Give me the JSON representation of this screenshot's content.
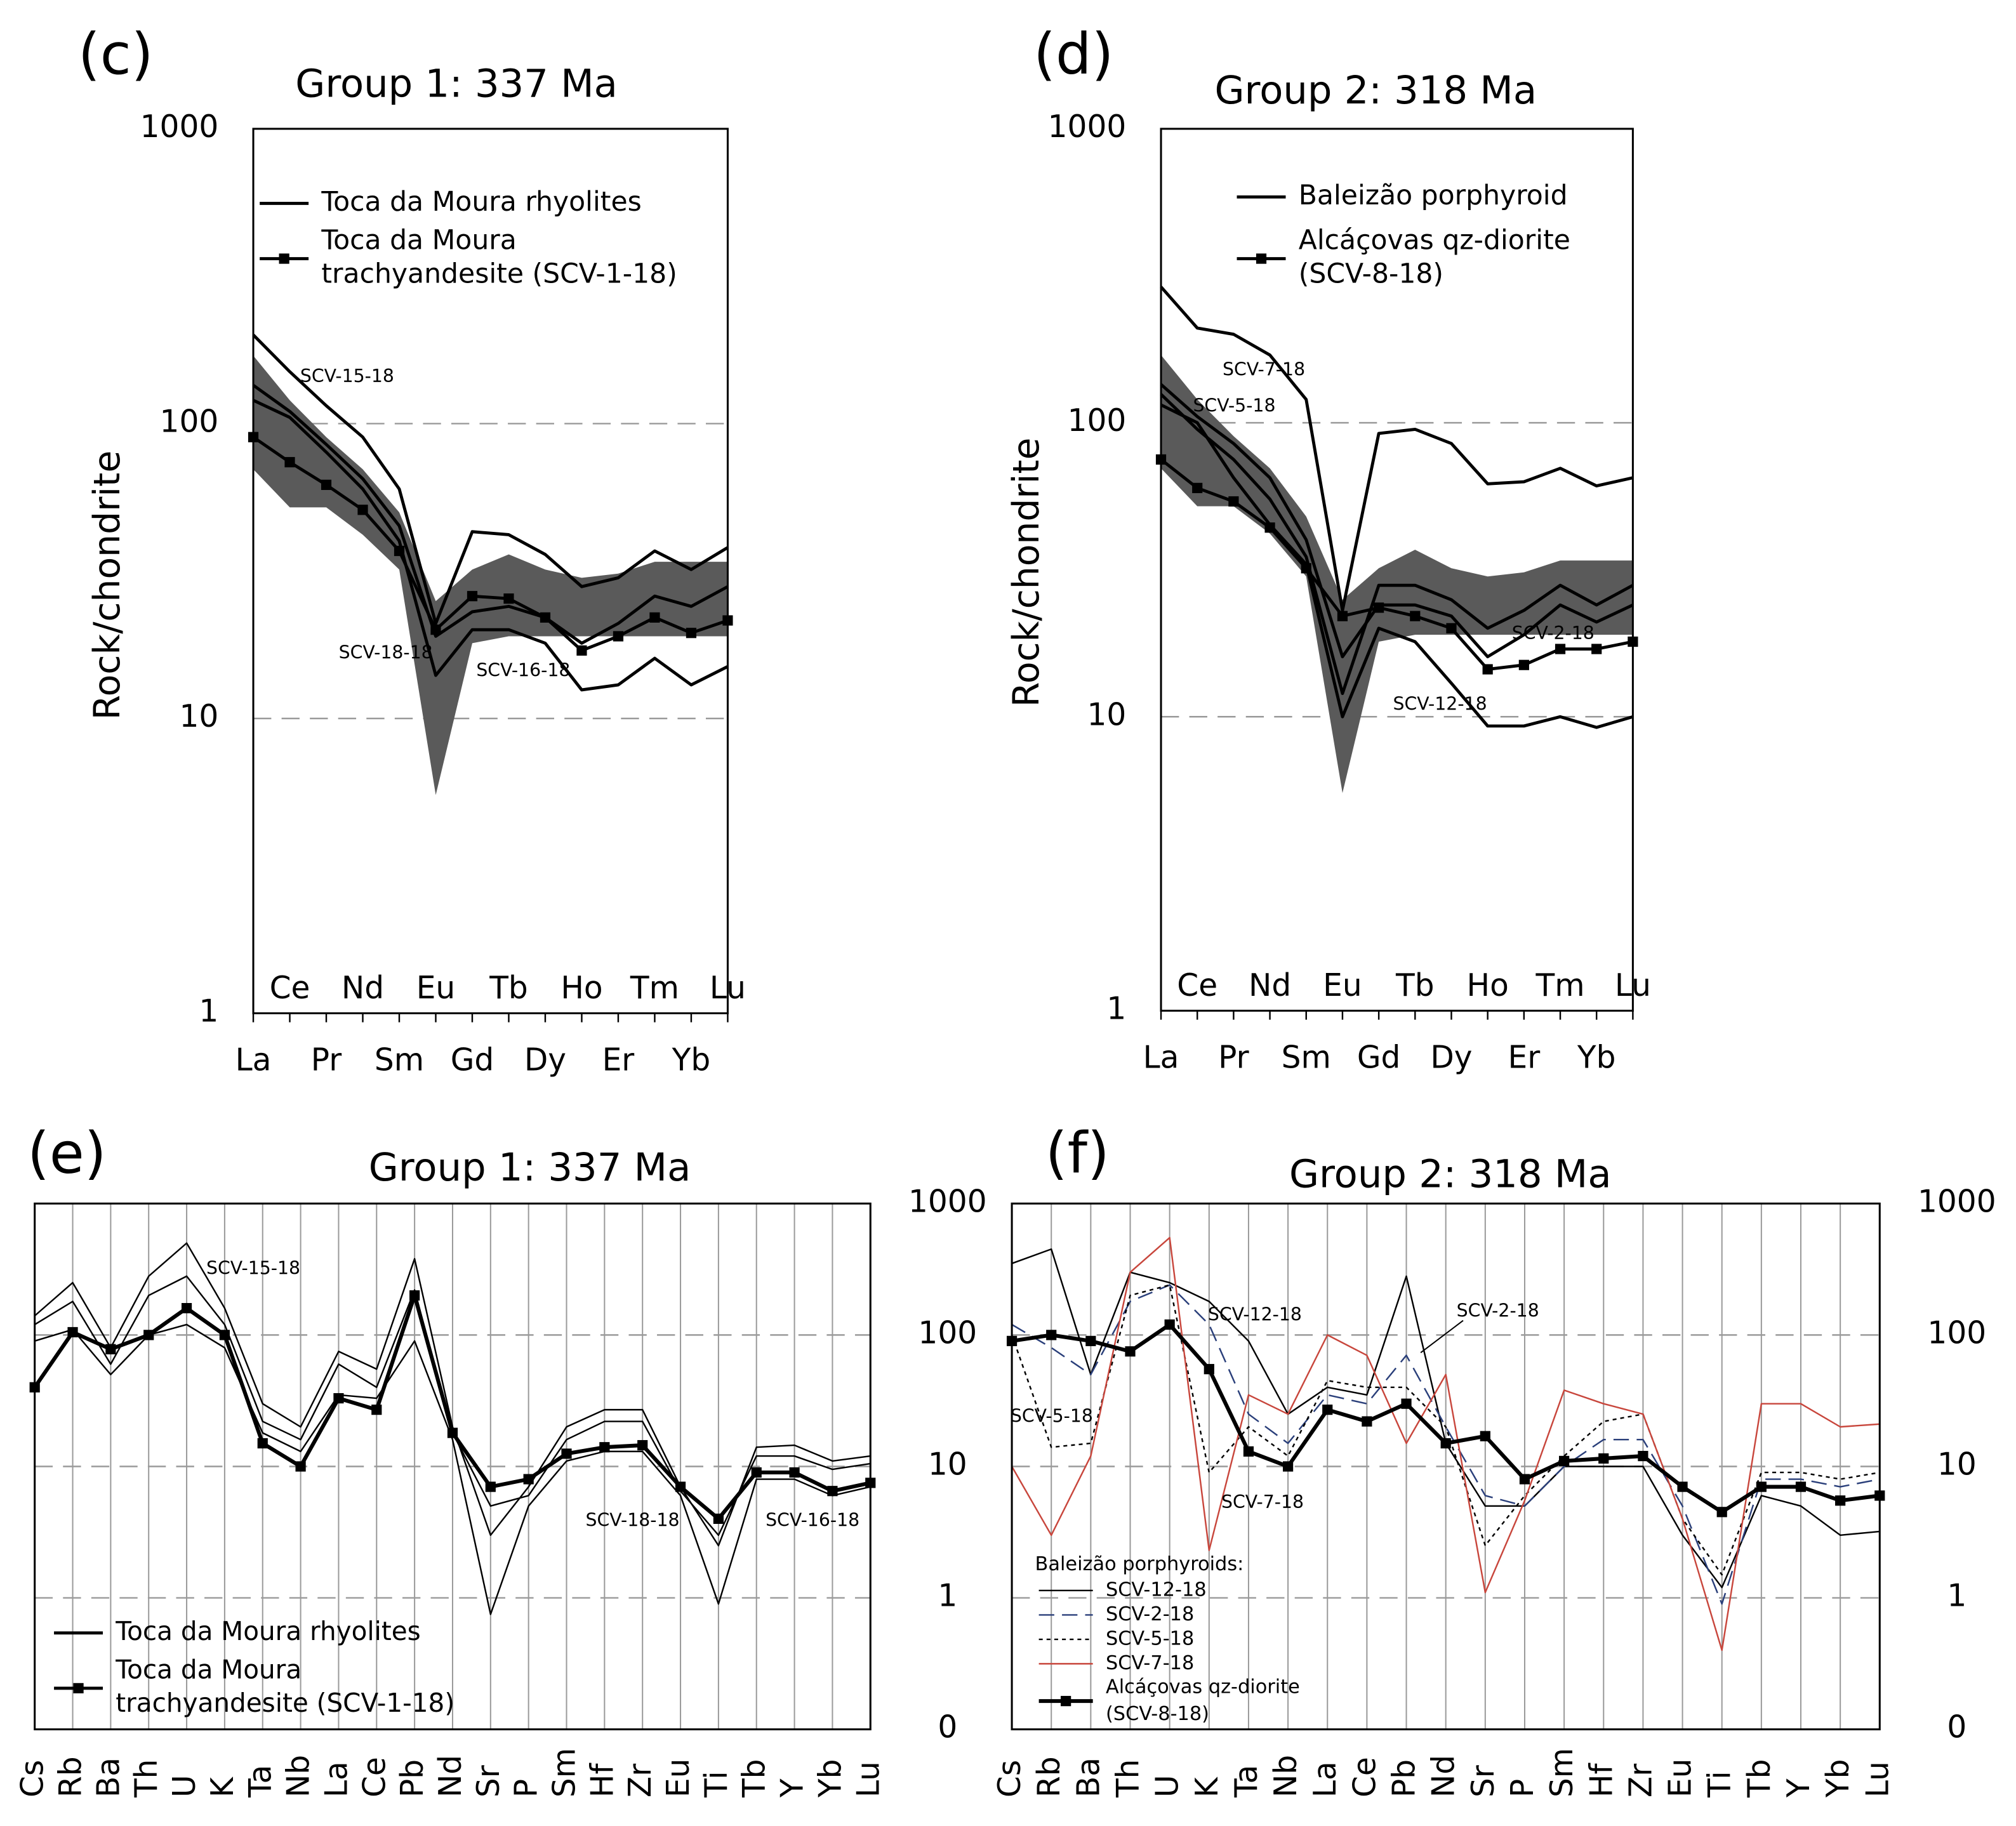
{
  "chart_data": [
    {
      "type": "line",
      "panel_label": "(c)",
      "title": "Group 1: 337 Ma",
      "ylabel": "Rock/chondrite",
      "log_y": true,
      "yaxis": "left",
      "grid": true,
      "categories": [
        "La",
        "Ce",
        "Pr",
        "Nd",
        "Sm",
        "Eu",
        "Gd",
        "Tb",
        "Dy",
        "Ho",
        "Er",
        "Tm",
        "Yb",
        "Lu"
      ],
      "ylim": [
        1,
        1000
      ],
      "yticks": [
        1,
        10,
        100,
        1000
      ],
      "band": {
        "color": "#5a5a5a",
        "upper": [
          170,
          120,
          90,
          70,
          50,
          25,
          32,
          36,
          32,
          30,
          31,
          34,
          34,
          34
        ],
        "lower": [
          70,
          52,
          52,
          42,
          32,
          5.5,
          18,
          19,
          19,
          19,
          19,
          19,
          19,
          19
        ]
      },
      "series": [
        {
          "name": "SCV-15-18",
          "color": "#000000",
          "width": "medium",
          "dash": "solid",
          "values": [
            200,
            150,
            115,
            90,
            60,
            21,
            43,
            42,
            36,
            28,
            30,
            37,
            32,
            38
          ]
        },
        {
          "name": "SCV-18-18",
          "color": "#000000",
          "width": "medium",
          "dash": "solid",
          "values": [
            135,
            110,
            85,
            65,
            45,
            19,
            23,
            24,
            22,
            18,
            21,
            26,
            24,
            28
          ]
        },
        {
          "name": "SCV-16-18",
          "color": "#000000",
          "width": "medium",
          "dash": "solid",
          "values": [
            120,
            105,
            80,
            60,
            40,
            14,
            20,
            20,
            18,
            12.5,
            13,
            16,
            13,
            15
          ]
        },
        {
          "color": "#000000",
          "width": "medium",
          "dash": "solid",
          "marker": true,
          "values": [
            90,
            74,
            62,
            51,
            37,
            20,
            26,
            25.5,
            22,
            17,
            19,
            22,
            19.5,
            21.5
          ]
        }
      ],
      "legend": [
        {
          "label": [
            "Toca da Moura rhyolites"
          ],
          "color": "#000000",
          "width": "medium",
          "dash": "solid",
          "marker": false
        },
        {
          "label": [
            "Toca da Moura",
            "trachyandesite (SCV-1-18)"
          ],
          "color": "#000000",
          "width": "medium",
          "dash": "solid",
          "marker": true
        }
      ]
    },
    {
      "type": "line",
      "panel_label": "(d)",
      "title": "Group 2: 318 Ma",
      "ylabel": "Rock/chondrite",
      "log_y": true,
      "yaxis": "left",
      "grid": true,
      "categories": [
        "La",
        "Ce",
        "Pr",
        "Nd",
        "Sm",
        "Eu",
        "Gd",
        "Tb",
        "Dy",
        "Ho",
        "Er",
        "Tm",
        "Yb",
        "Lu"
      ],
      "ylim": [
        1,
        1000
      ],
      "yticks": [
        1,
        10,
        100,
        1000
      ],
      "band": {
        "color": "#5a5a5a",
        "upper": [
          170,
          120,
          90,
          70,
          48,
          25,
          32,
          37,
          32,
          30,
          31,
          34,
          34,
          34
        ],
        "lower": [
          70,
          52,
          52,
          42,
          30,
          5.5,
          18,
          19,
          19,
          19,
          19,
          19,
          19,
          19
        ]
      },
      "series": [
        {
          "name": "SCV-7-18",
          "color": "#000000",
          "width": "medium",
          "dash": "solid",
          "values": [
            290,
            210,
            200,
            170,
            120,
            23,
            92,
            95,
            85,
            62,
            63,
            70,
            61,
            65
          ]
        },
        {
          "name": "SCV-5-18",
          "color": "#000000",
          "width": "medium",
          "dash": "solid",
          "values": [
            125,
            95,
            75,
            55,
            35,
            12,
            28,
            28,
            25,
            20,
            23,
            28,
            24,
            28
          ]
        },
        {
          "name": "SCV-2-18",
          "color": "#000000",
          "width": "medium",
          "dash": "solid",
          "values": [
            135,
            105,
            85,
            65,
            40,
            16,
            24,
            24,
            22,
            16,
            19,
            24,
            21,
            24
          ]
        },
        {
          "name": "SCV-12-18",
          "color": "#000000",
          "width": "medium",
          "dash": "solid",
          "values": [
            115,
            100,
            65,
            45,
            33,
            10,
            20,
            18,
            13,
            9.3,
            9.3,
            10,
            9.2,
            10
          ]
        },
        {
          "color": "#000000",
          "width": "medium",
          "dash": "solid",
          "marker": true,
          "values": [
            75,
            60,
            54,
            44,
            32,
            22,
            23.5,
            22,
            20,
            14.5,
            15,
            17,
            17,
            18
          ]
        }
      ],
      "legend": [
        {
          "label": [
            "Baleizão porphyroid"
          ],
          "color": "#000000",
          "width": "medium",
          "dash": "solid",
          "marker": false
        },
        {
          "label": [
            "Alcáçovas qz-diorite",
            "(SCV-8-18)"
          ],
          "color": "#000000",
          "width": "medium",
          "dash": "solid",
          "marker": true
        }
      ]
    },
    {
      "type": "line",
      "panel_label": "(e)",
      "title": "Group 1: 337 Ma",
      "log_y": true,
      "yaxis": "right",
      "grid": true,
      "xgrid": true,
      "categories": [
        "Cs",
        "Rb",
        "Ba",
        "Th",
        "U",
        "K",
        "Ta",
        "Nb",
        "La",
        "Ce",
        "Pb",
        "Nd",
        "Sr",
        "P",
        "Sm",
        "Hf",
        "Zr",
        "Eu",
        "Ti",
        "Tb",
        "Y",
        "Yb",
        "Lu"
      ],
      "ylim": [
        0.1,
        1000
      ],
      "yticks": [
        {
          "value": 0.1,
          "label": "0"
        },
        1,
        10,
        100,
        1000
      ],
      "series": [
        {
          "name": "SCV-15-18",
          "color": "#000000",
          "width": "thin",
          "dash": "solid",
          "values": [
            140,
            250,
            80,
            280,
            500,
            160,
            30,
            20,
            75,
            55,
            380,
            20,
            3,
            7,
            20,
            27,
            27,
            7,
            2.5,
            14,
            14.5,
            11,
            12
          ]
        },
        {
          "name": "SCV-18-18",
          "color": "#000000",
          "width": "thin",
          "dash": "solid",
          "values": [
            120,
            180,
            60,
            200,
            280,
            120,
            22,
            16,
            60,
            40,
            220,
            18,
            5,
            6,
            16,
            22,
            22,
            6.5,
            3,
            12,
            12,
            9.5,
            10.5
          ]
        },
        {
          "name": "SCV-16-18",
          "color": "#000000",
          "width": "thin",
          "dash": "solid",
          "values": [
            90,
            110,
            50,
            100,
            120,
            80,
            18,
            13,
            35,
            33,
            90,
            16,
            0.75,
            5,
            11,
            13,
            13,
            6,
            0.9,
            8,
            8,
            6,
            7
          ]
        },
        {
          "color": "#000000",
          "width": "thick",
          "dash": "solid",
          "marker": true,
          "values": [
            40,
            105,
            78,
            100,
            160,
            100,
            15,
            10,
            33,
            27,
            200,
            18,
            7,
            8,
            12.5,
            14,
            14.5,
            7,
            4,
            9,
            9,
            6.5,
            7.5
          ]
        }
      ],
      "legend": [
        {
          "label": [
            "Toca da Moura rhyolites"
          ],
          "color": "#000000",
          "width": "medium",
          "dash": "solid",
          "marker": false
        },
        {
          "label": [
            "Toca da Moura",
            "trachyandesite (SCV-1-18)"
          ],
          "color": "#000000",
          "width": "medium",
          "dash": "solid",
          "marker": true
        }
      ]
    },
    {
      "type": "line",
      "panel_label": "(f)",
      "title": "Group 2: 318 Ma",
      "log_y": true,
      "yaxis": "right",
      "grid": true,
      "xgrid": true,
      "categories": [
        "Cs",
        "Rb",
        "Ba",
        "Th",
        "U",
        "K",
        "Ta",
        "Nb",
        "La",
        "Ce",
        "Pb",
        "Nd",
        "Sr",
        "P",
        "Sm",
        "Hf",
        "Zr",
        "Eu",
        "Ti",
        "Tb",
        "Y",
        "Yb",
        "Lu"
      ],
      "ylim": [
        0.1,
        1000
      ],
      "yticks": [
        {
          "value": 0.1,
          "label": "0"
        },
        1,
        10,
        100,
        1000
      ],
      "series": [
        {
          "name": "SCV-12-18",
          "color": "#000000",
          "width": "thin",
          "dash": "solid",
          "values": [
            350,
            450,
            50,
            300,
            250,
            180,
            90,
            25,
            40,
            35,
            280,
            15,
            5,
            5,
            10,
            10,
            10,
            3,
            1.2,
            6,
            5,
            3,
            3.2
          ]
        },
        {
          "name": "SCV-2-18",
          "color": "#2a3f7a",
          "width": "thin",
          "dash": "dashed",
          "values": [
            120,
            80,
            50,
            180,
            240,
            120,
            25,
            15,
            35,
            30,
            70,
            20,
            6,
            5,
            10,
            16,
            16,
            5,
            0.9,
            8,
            8,
            7,
            8
          ]
        },
        {
          "name": "SCV-5-18",
          "color": "#000000",
          "width": "thin",
          "dash": "dotted",
          "values": [
            100,
            14,
            15,
            200,
            240,
            9,
            20,
            12,
            45,
            40,
            40,
            20,
            2.5,
            6,
            12,
            22,
            25,
            4,
            1.5,
            9,
            9,
            8,
            9
          ]
        },
        {
          "name": "SCV-7-18",
          "color": "#c8463c",
          "width": "thin",
          "dash": "solid",
          "values": [
            10,
            3,
            12,
            300,
            550,
            2.3,
            35,
            25,
            100,
            70,
            15,
            50,
            1.1,
            5.5,
            38,
            30,
            25,
            4,
            0.4,
            30,
            30,
            20,
            21
          ]
        },
        {
          "color": "#000000",
          "width": "thick",
          "dash": "solid",
          "marker": true,
          "values": [
            90,
            100,
            90,
            75,
            120,
            55,
            13,
            10,
            27,
            22,
            30,
            15,
            17,
            8,
            11,
            11.5,
            12,
            7,
            4.5,
            7,
            7,
            5.5,
            6
          ]
        }
      ],
      "legend_title": "Baleizão porphyroids:",
      "legend": [
        {
          "label": [
            "SCV-12-18"
          ],
          "color": "#000000",
          "width": "thin",
          "dash": "solid",
          "marker": false
        },
        {
          "label": [
            "SCV-2-18"
          ],
          "color": "#2a3f7a",
          "width": "thin",
          "dash": "dashed",
          "marker": false
        },
        {
          "label": [
            "SCV-5-18"
          ],
          "color": "#000000",
          "width": "thin",
          "dash": "dotted",
          "marker": false
        },
        {
          "label": [
            "SCV-7-18"
          ],
          "color": "#c8463c",
          "width": "thin",
          "dash": "solid",
          "marker": false
        },
        {
          "label": [
            "Alcáçovas qz-diorite",
            "(SCV-8-18)"
          ],
          "color": "#000000",
          "width": "thick",
          "dash": "solid",
          "marker": true
        }
      ]
    }
  ]
}
